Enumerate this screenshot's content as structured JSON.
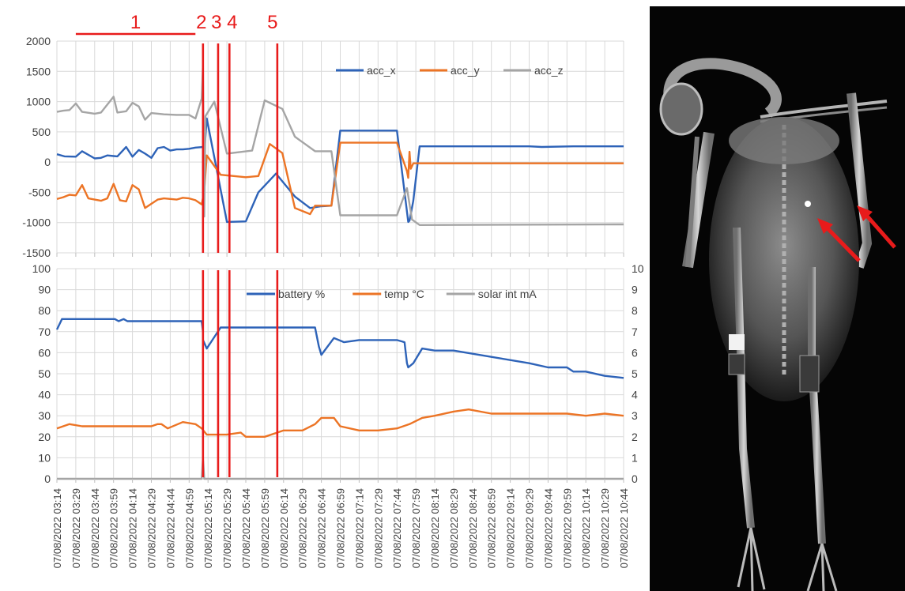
{
  "chart_data": [
    {
      "type": "line",
      "id": "acceleration",
      "x_label_format": "dd/mm/yyyy hh:mm",
      "ylim": [
        -1500,
        2000
      ],
      "yticks": [
        2000,
        1500,
        1000,
        500,
        0,
        -500,
        -1000,
        -1500
      ],
      "grid": true,
      "legend_position": "top-right",
      "series": [
        {
          "name": "acc_x",
          "color": "#2e63b8",
          "points": [
            [
              "03:14",
              130
            ],
            [
              "03:20",
              95
            ],
            [
              "03:29",
              90
            ],
            [
              "03:34",
              180
            ],
            [
              "03:44",
              60
            ],
            [
              "03:49",
              70
            ],
            [
              "03:54",
              110
            ],
            [
              "03:59",
              100
            ],
            [
              "04:02",
              95
            ],
            [
              "04:09",
              250
            ],
            [
              "04:14",
              90
            ],
            [
              "04:19",
              200
            ],
            [
              "04:24",
              140
            ],
            [
              "04:29",
              70
            ],
            [
              "04:34",
              230
            ],
            [
              "04:39",
              250
            ],
            [
              "04:44",
              190
            ],
            [
              "04:49",
              210
            ],
            [
              "04:54",
              210
            ],
            [
              "04:59",
              220
            ],
            [
              "05:04",
              240
            ],
            [
              "05:10",
              250
            ],
            [
              "05:10",
              -150
            ],
            [
              "05:13",
              720
            ],
            [
              "05:29",
              -990
            ],
            [
              "05:44",
              -980
            ],
            [
              "05:54",
              -500
            ],
            [
              "06:08",
              -190
            ],
            [
              "06:23",
              -570
            ],
            [
              "06:35",
              -760
            ],
            [
              "06:44",
              -730
            ],
            [
              "06:52",
              -720
            ],
            [
              "06:59",
              520
            ],
            [
              "07:44",
              520
            ],
            [
              "07:53",
              -990
            ],
            [
              "07:54",
              -970
            ],
            [
              "07:57",
              -640
            ],
            [
              "08:02",
              260
            ],
            [
              "08:14",
              260
            ],
            [
              "09:29",
              260
            ],
            [
              "09:39",
              250
            ],
            [
              "10:04",
              260
            ],
            [
              "10:44",
              260
            ]
          ]
        },
        {
          "name": "acc_y",
          "color": "#ec7425",
          "points": [
            [
              "03:14",
              -610
            ],
            [
              "03:19",
              -580
            ],
            [
              "03:24",
              -540
            ],
            [
              "03:29",
              -550
            ],
            [
              "03:34",
              -380
            ],
            [
              "03:39",
              -600
            ],
            [
              "03:49",
              -640
            ],
            [
              "03:54",
              -600
            ],
            [
              "03:59",
              -360
            ],
            [
              "04:04",
              -630
            ],
            [
              "04:09",
              -650
            ],
            [
              "04:14",
              -380
            ],
            [
              "04:19",
              -450
            ],
            [
              "04:24",
              -760
            ],
            [
              "04:34",
              -620
            ],
            [
              "04:39",
              -600
            ],
            [
              "04:49",
              -620
            ],
            [
              "04:54",
              -590
            ],
            [
              "04:59",
              -600
            ],
            [
              "05:04",
              -630
            ],
            [
              "05:09",
              -700
            ],
            [
              "05:11",
              -480
            ],
            [
              "05:13",
              110
            ],
            [
              "05:24",
              -210
            ],
            [
              "05:44",
              -250
            ],
            [
              "05:54",
              -230
            ],
            [
              "06:03",
              300
            ],
            [
              "06:13",
              150
            ],
            [
              "06:23",
              -760
            ],
            [
              "06:35",
              -860
            ],
            [
              "06:39",
              -720
            ],
            [
              "06:52",
              -720
            ],
            [
              "06:59",
              320
            ],
            [
              "07:44",
              320
            ],
            [
              "07:52",
              -150
            ],
            [
              "07:53",
              -260
            ],
            [
              "07:54",
              170
            ],
            [
              "07:55",
              -110
            ],
            [
              "07:57",
              -20
            ],
            [
              "10:44",
              -20
            ]
          ]
        },
        {
          "name": "acc_z",
          "color": "#a5a5a5",
          "points": [
            [
              "03:14",
              830
            ],
            [
              "03:19",
              850
            ],
            [
              "03:24",
              860
            ],
            [
              "03:29",
              970
            ],
            [
              "03:34",
              830
            ],
            [
              "03:44",
              800
            ],
            [
              "03:49",
              820
            ],
            [
              "03:59",
              1080
            ],
            [
              "04:02",
              820
            ],
            [
              "04:09",
              840
            ],
            [
              "04:14",
              980
            ],
            [
              "04:19",
              920
            ],
            [
              "04:24",
              700
            ],
            [
              "04:29",
              810
            ],
            [
              "04:39",
              790
            ],
            [
              "04:49",
              780
            ],
            [
              "04:59",
              780
            ],
            [
              "05:04",
              720
            ],
            [
              "05:09",
              1050
            ],
            [
              "05:10",
              1600
            ],
            [
              "05:11",
              -900
            ],
            [
              "05:12",
              760
            ],
            [
              "05:19",
              1000
            ],
            [
              "05:29",
              140
            ],
            [
              "05:49",
              190
            ],
            [
              "05:59",
              1020
            ],
            [
              "06:13",
              880
            ],
            [
              "06:23",
              420
            ],
            [
              "06:39",
              180
            ],
            [
              "06:52",
              180
            ],
            [
              "06:59",
              -880
            ],
            [
              "07:44",
              -880
            ],
            [
              "07:52",
              -430
            ],
            [
              "07:56",
              -950
            ],
            [
              "08:02",
              -1040
            ],
            [
              "10:44",
              -1030
            ]
          ]
        }
      ]
    },
    {
      "type": "line",
      "id": "battery-temp-solar",
      "ylim_left": [
        0,
        100
      ],
      "ylim_right": [
        0,
        10
      ],
      "yticks_left": [
        100,
        90,
        80,
        70,
        60,
        50,
        40,
        30,
        20,
        10,
        0
      ],
      "yticks_right": [
        10,
        9,
        8,
        7,
        6,
        5,
        4,
        3,
        2,
        1,
        0
      ],
      "grid": true,
      "legend_position": "top-right",
      "series": [
        {
          "name": "battery %",
          "axis": "left",
          "color": "#2e63b8",
          "points": [
            [
              "03:14",
              71
            ],
            [
              "03:18",
              76
            ],
            [
              "04:00",
              76
            ],
            [
              "04:03",
              75
            ],
            [
              "04:07",
              76
            ],
            [
              "04:10",
              75
            ],
            [
              "05:09",
              75
            ],
            [
              "05:10",
              70
            ],
            [
              "05:10",
              66
            ],
            [
              "05:13",
              62
            ],
            [
              "05:24",
              72
            ],
            [
              "06:39",
              72
            ],
            [
              "06:42",
              63
            ],
            [
              "06:44",
              59
            ],
            [
              "06:54",
              67
            ],
            [
              "07:02",
              65
            ],
            [
              "07:14",
              66
            ],
            [
              "07:44",
              66
            ],
            [
              "07:50",
              65
            ],
            [
              "07:52",
              55
            ],
            [
              "07:53",
              53
            ],
            [
              "07:57",
              55
            ],
            [
              "08:04",
              62
            ],
            [
              "08:14",
              61
            ],
            [
              "08:29",
              61
            ],
            [
              "08:59",
              58
            ],
            [
              "09:29",
              55
            ],
            [
              "09:44",
              53
            ],
            [
              "09:59",
              53
            ],
            [
              "10:04",
              51
            ],
            [
              "10:14",
              51
            ],
            [
              "10:29",
              49
            ],
            [
              "10:44",
              48
            ]
          ]
        },
        {
          "name": "temp °C",
          "axis": "left",
          "color": "#ec7425",
          "points": [
            [
              "03:14",
              24
            ],
            [
              "03:24",
              26
            ],
            [
              "03:34",
              25
            ],
            [
              "04:29",
              25
            ],
            [
              "04:34",
              26
            ],
            [
              "04:37",
              26
            ],
            [
              "04:42",
              24
            ],
            [
              "04:54",
              27
            ],
            [
              "05:04",
              26
            ],
            [
              "05:09",
              24
            ],
            [
              "05:13",
              21
            ],
            [
              "05:29",
              21
            ],
            [
              "05:40",
              22
            ],
            [
              "05:44",
              20
            ],
            [
              "05:59",
              20
            ],
            [
              "06:09",
              22
            ],
            [
              "06:14",
              23
            ],
            [
              "06:29",
              23
            ],
            [
              "06:39",
              26
            ],
            [
              "06:44",
              29
            ],
            [
              "06:54",
              29
            ],
            [
              "06:59",
              25
            ],
            [
              "07:14",
              23
            ],
            [
              "07:29",
              23
            ],
            [
              "07:44",
              24
            ],
            [
              "07:54",
              26
            ],
            [
              "08:04",
              29
            ],
            [
              "08:14",
              30
            ],
            [
              "08:29",
              32
            ],
            [
              "08:41",
              33
            ],
            [
              "08:59",
              31
            ],
            [
              "09:59",
              31
            ],
            [
              "10:14",
              30
            ],
            [
              "10:29",
              31
            ],
            [
              "10:44",
              30
            ]
          ]
        },
        {
          "name": "solar int mA",
          "axis": "right",
          "color": "#a5a5a5",
          "points": [
            [
              "03:14",
              0
            ],
            [
              "05:09",
              0
            ],
            [
              "05:10",
              1.0
            ],
            [
              "05:11",
              0
            ],
            [
              "10:44",
              0
            ]
          ]
        }
      ]
    }
  ],
  "x_tick_labels": [
    "07/08/2022 03:14",
    "07/08/2022 03:29",
    "07/08/2022 03:44",
    "07/08/2022 03:59",
    "07/08/2022 04:14",
    "07/08/2022 04:29",
    "07/08/2022 04:44",
    "07/08/2022 04:59",
    "07/08/2022 05:14",
    "07/08/2022 05:29",
    "07/08/2022 05:44",
    "07/08/2022 05:59",
    "07/08/2022 06:14",
    "07/08/2022 06:29",
    "07/08/2022 06:44",
    "07/08/2022 06:59",
    "07/08/2022 07:14",
    "07/08/2022 07:29",
    "07/08/2022 07:44",
    "07/08/2022 07:59",
    "07/08/2022 08:14",
    "07/08/2022 08:29",
    "07/08/2022 08:44",
    "07/08/2022 08:59",
    "07/08/2022 09:14",
    "07/08/2022 09:29",
    "07/08/2022 09:44",
    "07/08/2022 09:59",
    "07/08/2022 10:14",
    "07/08/2022 10:29",
    "07/08/2022 10:44"
  ],
  "annotations": {
    "phase_labels": [
      "1",
      "2",
      "3",
      "4",
      "5"
    ],
    "phase_1_range": [
      "03:29",
      "05:04"
    ],
    "phase_marker_times": [
      "05:10",
      "05:22",
      "05:31",
      "06:09"
    ],
    "color": "#e81b1b"
  },
  "xray": {
    "subject": "bird x-ray with red arrows pointing to tag",
    "arrow_color": "#e81b1b"
  }
}
